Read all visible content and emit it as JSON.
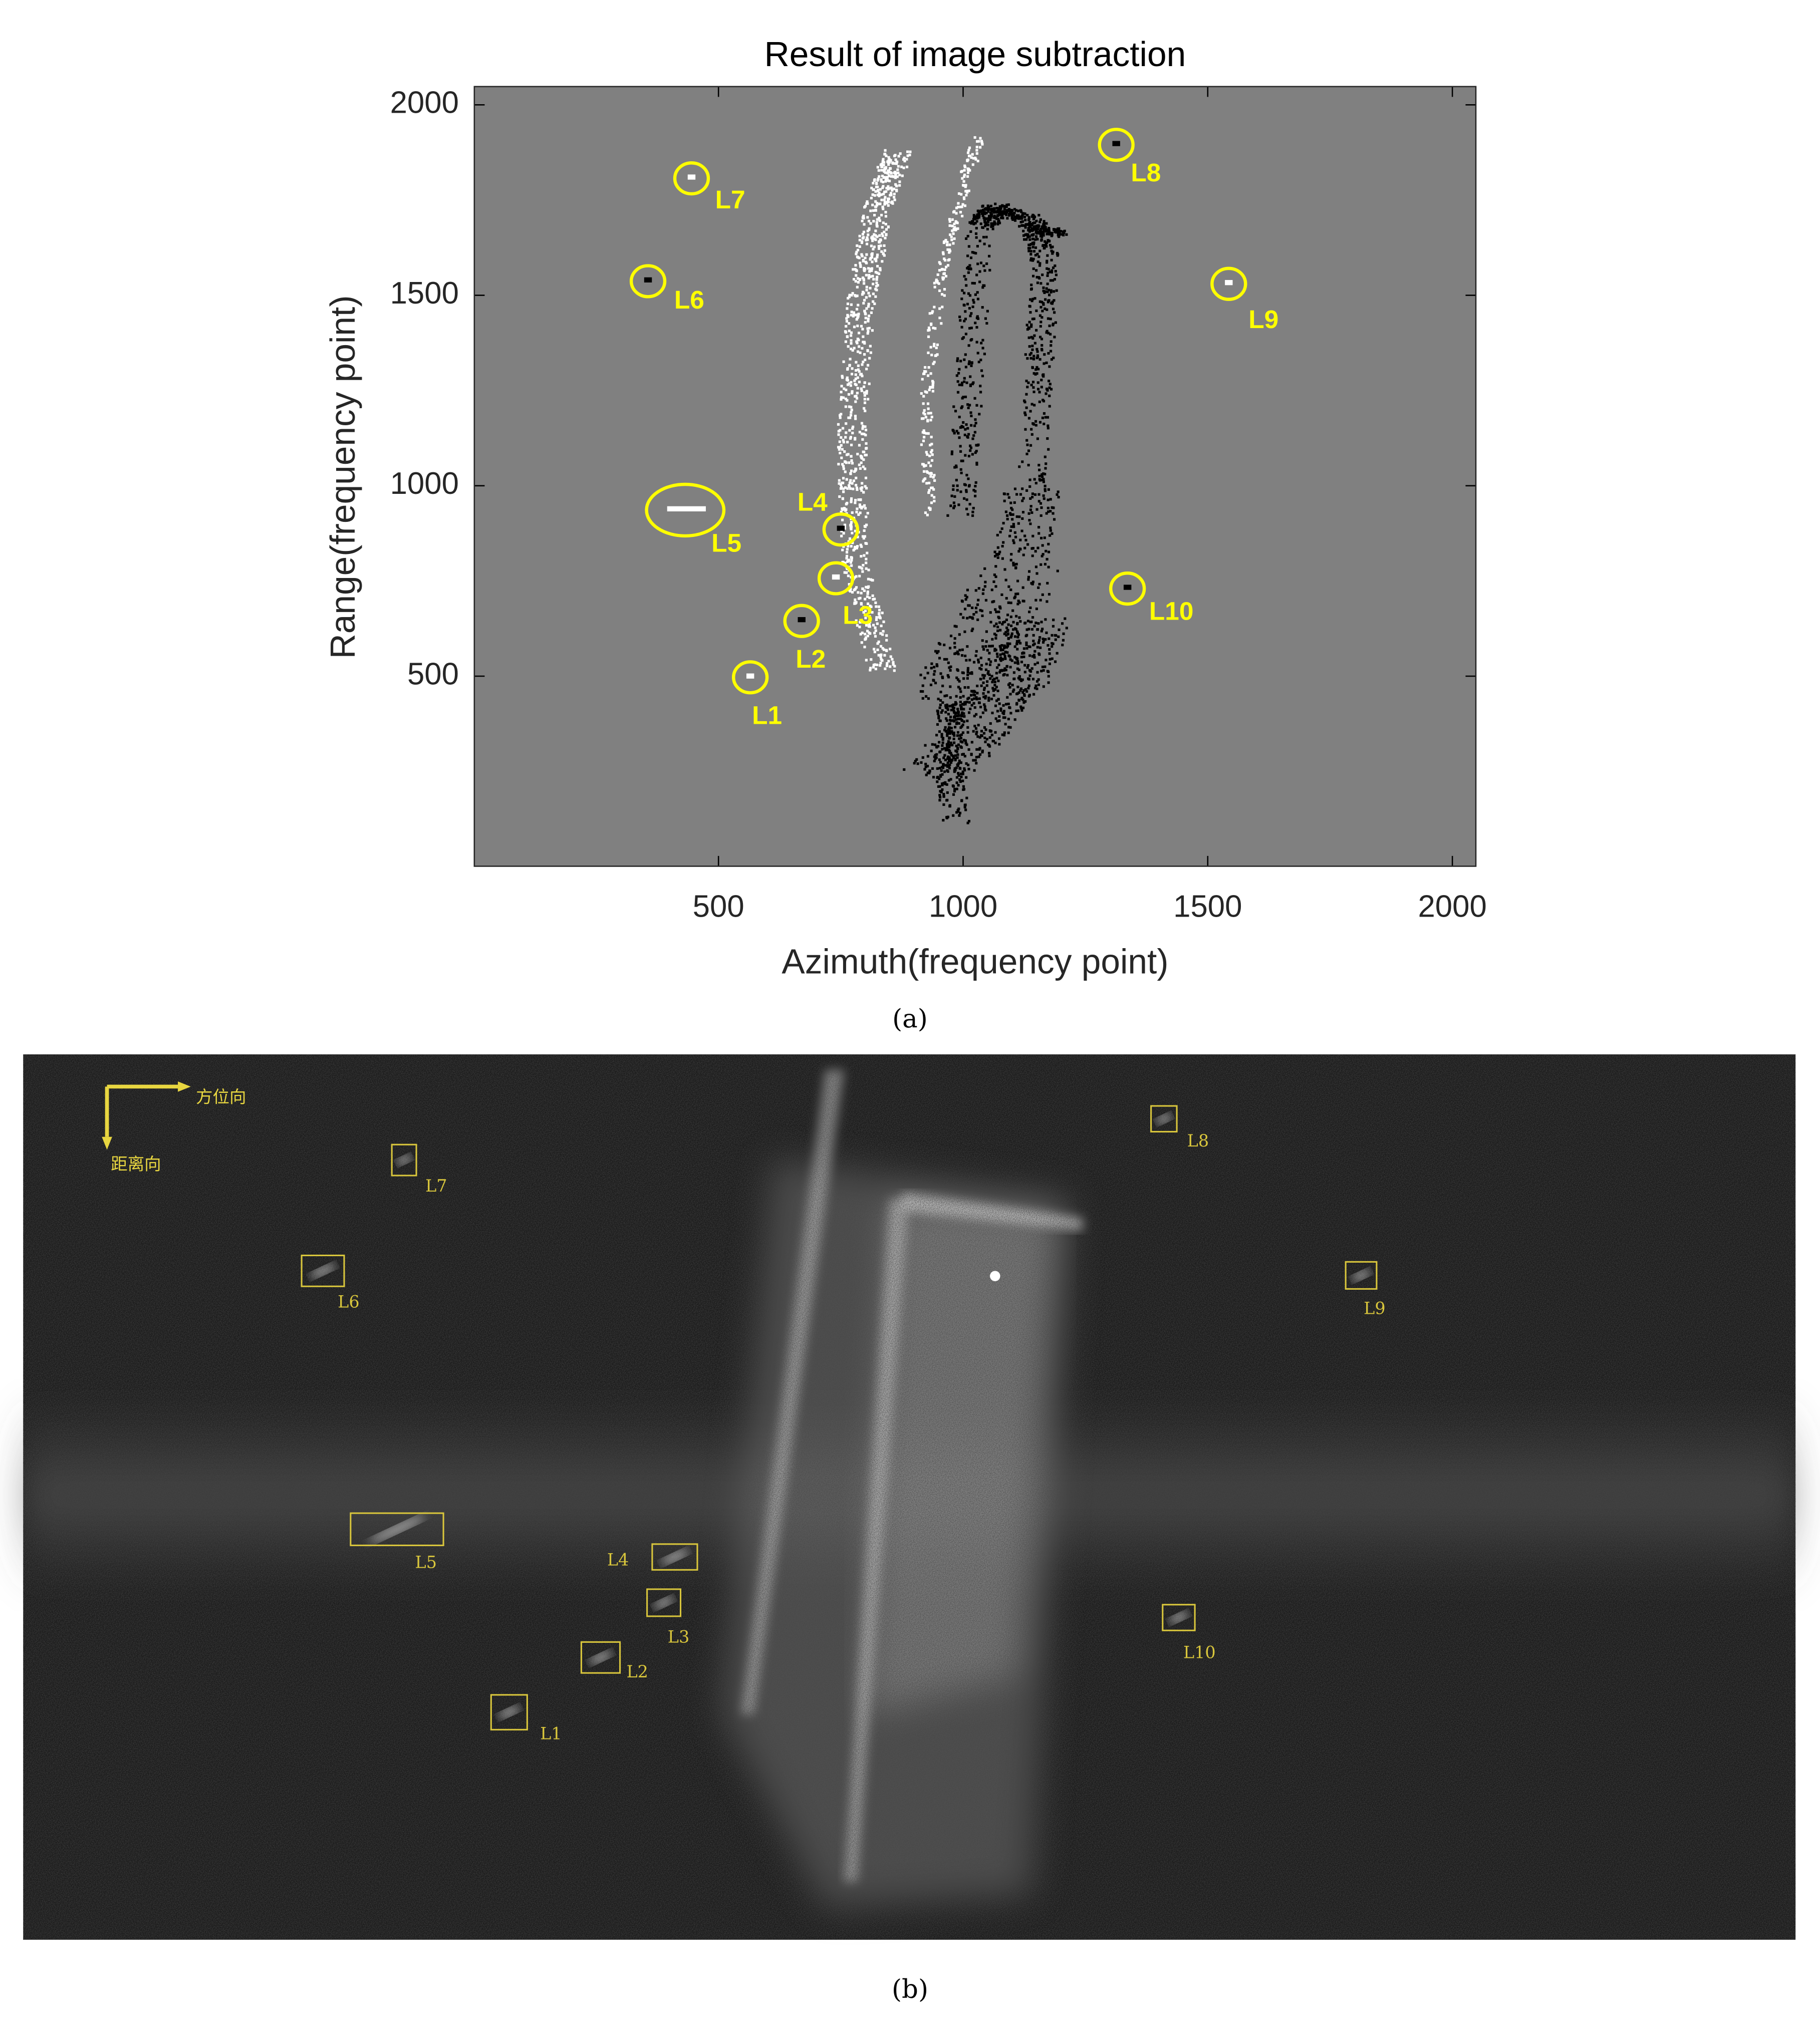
{
  "chart_data": {
    "type": "scatter",
    "title": "Result of image subtraction",
    "x_label": "Azimuth(frequency point)",
    "y_label": "Range(frequency point)",
    "xlim": [
      1,
      2048
    ],
    "ylim": [
      1,
      2048
    ],
    "xticks": [
      500,
      1000,
      1500,
      2000
    ],
    "yticks": [
      500,
      1000,
      1500,
      2000
    ],
    "background": "#808080",
    "annotation_color": "#ffff00",
    "annotations": [
      {
        "label": "L1",
        "x": 565,
        "y": 497
      },
      {
        "label": "L2",
        "x": 670,
        "y": 645
      },
      {
        "label": "L3",
        "x": 740,
        "y": 757
      },
      {
        "label": "L4",
        "x": 750,
        "y": 885
      },
      {
        "label": "L5",
        "x": 432,
        "y": 936
      },
      {
        "label": "L6",
        "x": 356,
        "y": 1537
      },
      {
        "label": "L7",
        "x": 445,
        "y": 1807
      },
      {
        "label": "L8",
        "x": 1313,
        "y": 1895
      },
      {
        "label": "L9",
        "x": 1543,
        "y": 1530
      },
      {
        "label": "L10",
        "x": 1336,
        "y": 730
      }
    ]
  },
  "figure": {
    "caption_a": "(a)",
    "caption_b": "(b)",
    "panel_b": {
      "azimuth_label": "方位向",
      "range_label": "距离向",
      "box_color": "#d9c63c",
      "labels": [
        "L1",
        "L2",
        "L3",
        "L4",
        "L5",
        "L6",
        "L7",
        "L8",
        "L9",
        "L10"
      ]
    }
  }
}
